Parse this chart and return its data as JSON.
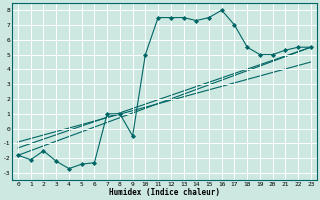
{
  "xlabel": "Humidex (Indice chaleur)",
  "background_color": "#cce8e0",
  "grid_color": "#ffffff",
  "line_color": "#006666",
  "xlim": [
    -0.5,
    23.5
  ],
  "ylim": [
    -3.5,
    8.5
  ],
  "xticks": [
    0,
    1,
    2,
    3,
    4,
    5,
    6,
    7,
    8,
    9,
    10,
    11,
    12,
    13,
    14,
    15,
    16,
    17,
    18,
    19,
    20,
    21,
    22,
    23
  ],
  "yticks": [
    -3,
    -2,
    -1,
    0,
    1,
    2,
    3,
    4,
    5,
    6,
    7,
    8
  ],
  "line1_x": [
    0,
    1,
    2,
    3,
    4,
    5,
    6,
    7,
    8,
    9,
    10,
    11,
    12,
    13,
    14,
    15,
    16,
    17,
    18,
    19,
    20,
    21,
    22,
    23
  ],
  "line1_y": [
    -1.8,
    -2.1,
    -1.5,
    -2.2,
    -2.7,
    -2.4,
    -2.3,
    1.0,
    1.0,
    -0.5,
    5.0,
    7.5,
    7.5,
    7.5,
    7.3,
    7.5,
    8.0,
    7.0,
    5.5,
    5.0,
    5.0,
    5.3,
    5.5,
    5.5
  ],
  "line2_x": [
    0,
    23
  ],
  "line2_y": [
    -1.8,
    5.5
  ],
  "line3_x": [
    0,
    23
  ],
  "line3_y": [
    -1.3,
    5.5
  ],
  "line4_x": [
    0,
    23
  ],
  "line4_y": [
    -0.9,
    4.5
  ]
}
